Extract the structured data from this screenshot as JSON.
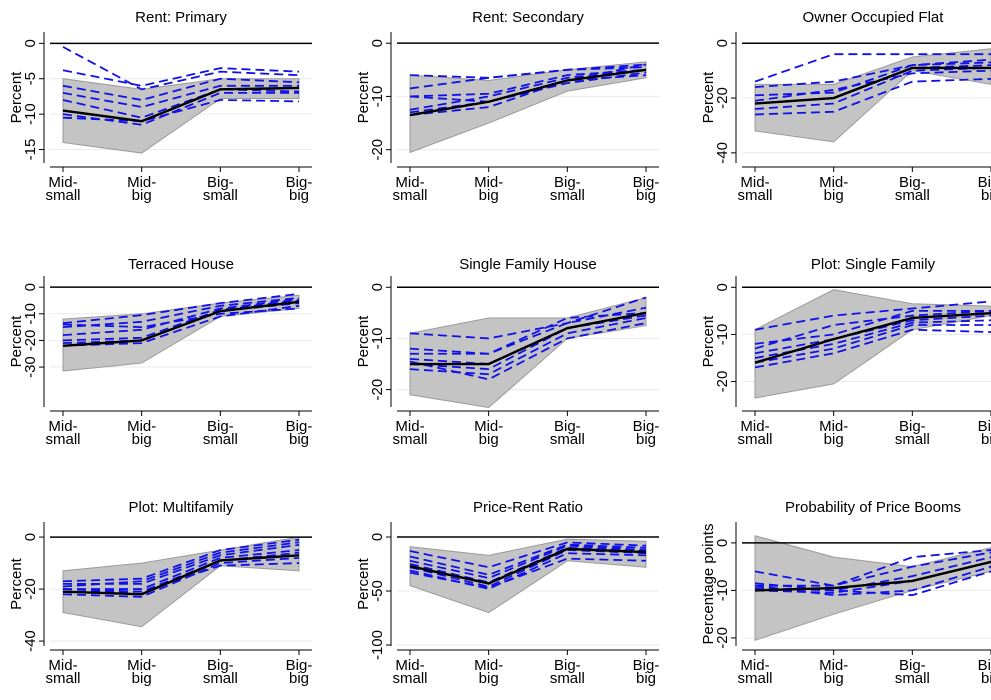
{
  "chart_data": [
    {
      "type": "line",
      "title": "Rent: Primary",
      "y_label": "Percent",
      "categories": [
        [
          "Mid-",
          "small"
        ],
        [
          "Mid-",
          "big"
        ],
        [
          "Big-",
          "small"
        ],
        [
          "Big-",
          "big"
        ]
      ],
      "ylim": [
        -16.9,
        1.6
      ],
      "yticks": [
        0,
        -5,
        -10,
        -15
      ],
      "grid": true,
      "hline": 0,
      "band": {
        "color": "#c4c4c4",
        "lower": [
          -14,
          -15.5,
          -7.8,
          -7.8
        ],
        "upper": [
          -5,
          -6.5,
          -5,
          -5
        ]
      },
      "series": [
        {
          "color": "#1010e8",
          "dashed": true,
          "values": [
            -0.5,
            -6.5,
            -4,
            -4.5
          ]
        },
        {
          "color": "#1010e8",
          "dashed": true,
          "values": [
            -3.8,
            -6,
            -3.5,
            -4
          ]
        },
        {
          "color": "#1010e8",
          "dashed": true,
          "values": [
            -6,
            -8,
            -5,
            -5.5
          ]
        },
        {
          "color": "#1010e8",
          "dashed": true,
          "values": [
            -7,
            -9,
            -6,
            -6
          ]
        },
        {
          "color": "#1010e8",
          "dashed": true,
          "values": [
            -8,
            -10.5,
            -6.5,
            -6.8
          ]
        },
        {
          "color": "#1010e8",
          "dashed": true,
          "values": [
            -10,
            -11.5,
            -7,
            -7
          ]
        },
        {
          "color": "#1010e8",
          "dashed": true,
          "values": [
            -10.5,
            -11,
            -8,
            -8.2
          ]
        },
        {
          "color": "#000000",
          "dashed": false,
          "values": [
            -9.5,
            -11,
            -6.5,
            -6.3
          ]
        }
      ]
    },
    {
      "type": "line",
      "title": "Rent: Secondary",
      "y_label": "Percent",
      "categories": [
        [
          "Mid-",
          "small"
        ],
        [
          "Mid-",
          "big"
        ],
        [
          "Big-",
          "small"
        ],
        [
          "Big-",
          "big"
        ]
      ],
      "ylim": [
        -22.5,
        2.1
      ],
      "yticks": [
        0,
        -10,
        -20
      ],
      "grid": true,
      "hline": 0,
      "band": {
        "color": "#c4c4c4",
        "lower": [
          -20.5,
          -15,
          -9,
          -6.5
        ],
        "upper": [
          -6,
          -7,
          -5,
          -3.5
        ]
      },
      "series": [
        {
          "color": "#1010e8",
          "dashed": true,
          "values": [
            -6,
            -6.5,
            -5,
            -4
          ]
        },
        {
          "color": "#1010e8",
          "dashed": true,
          "values": [
            -8.5,
            -6.5,
            -5,
            -4.5
          ]
        },
        {
          "color": "#1010e8",
          "dashed": true,
          "values": [
            -10,
            -9.5,
            -6,
            -5
          ]
        },
        {
          "color": "#1010e8",
          "dashed": true,
          "values": [
            -12.5,
            -10,
            -6.5,
            -5
          ]
        },
        {
          "color": "#1010e8",
          "dashed": true,
          "values": [
            -13,
            -11,
            -7.5,
            -5.5
          ]
        },
        {
          "color": "#1010e8",
          "dashed": true,
          "values": [
            -13.5,
            -12,
            -7,
            -6
          ]
        },
        {
          "color": "#1010e8",
          "dashed": true,
          "values": [
            -10,
            -11,
            -7,
            -4
          ]
        },
        {
          "color": "#000000",
          "dashed": false,
          "values": [
            -13.5,
            -11,
            -7,
            -5
          ]
        }
      ]
    },
    {
      "type": "line",
      "title": "Owner Occupied Flat",
      "y_label": "Percent",
      "categories": [
        [
          "Mid-",
          "small"
        ],
        [
          "Mid-",
          "big"
        ],
        [
          "Big-",
          "small"
        ],
        [
          "Big-",
          "big"
        ]
      ],
      "ylim": [
        -43.7,
        4.1
      ],
      "yticks": [
        0,
        -20,
        -40
      ],
      "grid": true,
      "hline": 0,
      "band": {
        "color": "#c4c4c4",
        "lower": [
          -32,
          -36,
          -10,
          -15
        ],
        "upper": [
          -15,
          -15,
          -5,
          -2
        ]
      },
      "series": [
        {
          "color": "#1010e8",
          "dashed": true,
          "values": [
            -14,
            -4,
            -4,
            -4
          ]
        },
        {
          "color": "#1010e8",
          "dashed": true,
          "values": [
            -16,
            -14,
            -8,
            -6
          ]
        },
        {
          "color": "#1010e8",
          "dashed": true,
          "values": [
            -19,
            -18,
            -8,
            -7
          ]
        },
        {
          "color": "#1010e8",
          "dashed": true,
          "values": [
            -22,
            -20,
            -9,
            -8
          ]
        },
        {
          "color": "#1010e8",
          "dashed": true,
          "values": [
            -24,
            -22,
            -10,
            -9
          ]
        },
        {
          "color": "#1010e8",
          "dashed": true,
          "values": [
            -26,
            -25,
            -14,
            -13
          ]
        },
        {
          "color": "#1010e8",
          "dashed": true,
          "values": [
            -21,
            -17,
            -11,
            -10
          ]
        },
        {
          "color": "#000000",
          "dashed": false,
          "values": [
            -22,
            -20,
            -9,
            -9
          ]
        }
      ]
    },
    {
      "type": "line",
      "title": "Terraced House",
      "y_label": "Percent",
      "categories": [
        [
          "Mid-",
          "small"
        ],
        [
          "Mid-",
          "big"
        ],
        [
          "Big-",
          "small"
        ],
        [
          "Big-",
          "big"
        ]
      ],
      "ylim": [
        -45,
        4.2
      ],
      "yticks": [
        0,
        -10,
        -20,
        -30
      ],
      "grid": true,
      "hline": 0,
      "band": {
        "color": "#c4c4c4",
        "lower": [
          -31.5,
          -28.5,
          -11,
          -8
        ],
        "upper": [
          -12,
          -10,
          -6,
          -3
        ]
      },
      "series": [
        {
          "color": "#1010e8",
          "dashed": true,
          "values": [
            -13.5,
            -10.5,
            -6,
            -2.5
          ]
        },
        {
          "color": "#1010e8",
          "dashed": true,
          "values": [
            -15,
            -13,
            -7,
            -4
          ]
        },
        {
          "color": "#1010e8",
          "dashed": true,
          "values": [
            -18,
            -16,
            -8,
            -4.5
          ]
        },
        {
          "color": "#1010e8",
          "dashed": true,
          "values": [
            -20,
            -19,
            -8.5,
            -5
          ]
        },
        {
          "color": "#1010e8",
          "dashed": true,
          "values": [
            -21,
            -20,
            -9,
            -6
          ]
        },
        {
          "color": "#1010e8",
          "dashed": true,
          "values": [
            -22,
            -21,
            -11,
            -7
          ]
        },
        {
          "color": "#1010e8",
          "dashed": true,
          "values": [
            -14,
            -15,
            -10,
            -8
          ]
        },
        {
          "color": "#000000",
          "dashed": false,
          "values": [
            -22,
            -20,
            -9,
            -5.5
          ]
        }
      ]
    },
    {
      "type": "line",
      "title": "Single Family House",
      "y_label": "Percent",
      "categories": [
        [
          "Mid-",
          "small"
        ],
        [
          "Mid-",
          "big"
        ],
        [
          "Big-",
          "small"
        ],
        [
          "Big-",
          "big"
        ]
      ],
      "ylim": [
        -23.4,
        2.2
      ],
      "yticks": [
        0,
        -10,
        -20
      ],
      "grid": true,
      "hline": 0,
      "band": {
        "color": "#c4c4c4",
        "lower": [
          -21,
          -23.5,
          -10,
          -7.5
        ],
        "upper": [
          -9,
          -6,
          -6,
          -2
        ]
      },
      "series": [
        {
          "color": "#1010e8",
          "dashed": true,
          "values": [
            -9,
            -10,
            -7,
            -2
          ]
        },
        {
          "color": "#1010e8",
          "dashed": true,
          "values": [
            -12,
            -13,
            -7,
            -4
          ]
        },
        {
          "color": "#1010e8",
          "dashed": true,
          "values": [
            -14,
            -15,
            -8,
            -5
          ]
        },
        {
          "color": "#1010e8",
          "dashed": true,
          "values": [
            -15,
            -16,
            -8,
            -5.5
          ]
        },
        {
          "color": "#1010e8",
          "dashed": true,
          "values": [
            -16,
            -17,
            -9,
            -6
          ]
        },
        {
          "color": "#1010e8",
          "dashed": true,
          "values": [
            -14.5,
            -18,
            -10,
            -7
          ]
        },
        {
          "color": "#1010e8",
          "dashed": true,
          "values": [
            -13,
            -13,
            -6,
            -5
          ]
        },
        {
          "color": "#000000",
          "dashed": false,
          "values": [
            -15,
            -15,
            -8,
            -5
          ]
        }
      ]
    },
    {
      "type": "line",
      "title": "Plot: Single Family",
      "y_label": "Percent",
      "categories": [
        [
          "Mid-",
          "small"
        ],
        [
          "Mid-",
          "big"
        ],
        [
          "Big-",
          "small"
        ],
        [
          "Big-",
          "big"
        ]
      ],
      "ylim": [
        -25.4,
        2.4
      ],
      "yticks": [
        0,
        -10,
        -20
      ],
      "grid": true,
      "hline": 0,
      "band": {
        "color": "#c4c4c4",
        "lower": [
          -23.5,
          -20.5,
          -9,
          -6
        ],
        "upper": [
          -9,
          -0.5,
          -3.5,
          -4
        ]
      },
      "series": [
        {
          "color": "#1010e8",
          "dashed": true,
          "values": [
            -9,
            -6,
            -4.5,
            -3
          ]
        },
        {
          "color": "#1010e8",
          "dashed": true,
          "values": [
            -12,
            -10,
            -5,
            -5
          ]
        },
        {
          "color": "#1010e8",
          "dashed": true,
          "values": [
            -14,
            -11,
            -7,
            -6
          ]
        },
        {
          "color": "#1010e8",
          "dashed": true,
          "values": [
            -15,
            -12,
            -7.5,
            -7
          ]
        },
        {
          "color": "#1010e8",
          "dashed": true,
          "values": [
            -16,
            -13,
            -8,
            -8
          ]
        },
        {
          "color": "#1010e8",
          "dashed": true,
          "values": [
            -17,
            -14,
            -9,
            -9.5
          ]
        },
        {
          "color": "#1010e8",
          "dashed": true,
          "values": [
            -13,
            -8,
            -6,
            -5
          ]
        },
        {
          "color": "#000000",
          "dashed": false,
          "values": [
            -16,
            -11,
            -6.5,
            -5.5
          ]
        }
      ]
    },
    {
      "type": "line",
      "title": "Plot: Multifamily",
      "y_label": "Percent",
      "categories": [
        [
          "Mid-",
          "small"
        ],
        [
          "Mid-",
          "big"
        ],
        [
          "Big-",
          "small"
        ],
        [
          "Big-",
          "big"
        ]
      ],
      "ylim": [
        -41.9,
        5.8
      ],
      "yticks": [
        0,
        -20,
        -40
      ],
      "grid": true,
      "hline": 0,
      "band": {
        "color": "#c4c4c4",
        "lower": [
          -29,
          -34.5,
          -11,
          -13
        ],
        "upper": [
          -13,
          -10,
          -5,
          0
        ]
      },
      "series": [
        {
          "color": "#1010e8",
          "dashed": true,
          "values": [
            -17,
            -16,
            -5,
            -1
          ]
        },
        {
          "color": "#1010e8",
          "dashed": true,
          "values": [
            -18,
            -18,
            -7,
            -3
          ]
        },
        {
          "color": "#1010e8",
          "dashed": true,
          "values": [
            -20,
            -20,
            -8,
            -5
          ]
        },
        {
          "color": "#1010e8",
          "dashed": true,
          "values": [
            -21,
            -21,
            -9,
            -6
          ]
        },
        {
          "color": "#1010e8",
          "dashed": true,
          "values": [
            -22,
            -23,
            -10,
            -8
          ]
        },
        {
          "color": "#1010e8",
          "dashed": true,
          "values": [
            -20,
            -21,
            -11,
            -10
          ]
        },
        {
          "color": "#1010e8",
          "dashed": true,
          "values": [
            -19,
            -17,
            -6,
            -2
          ]
        },
        {
          "color": "#000000",
          "dashed": false,
          "values": [
            -21,
            -22,
            -9,
            -7
          ]
        }
      ]
    },
    {
      "type": "line",
      "title": "Price-Rent Ratio",
      "y_label": "Percent",
      "categories": [
        [
          "Mid-",
          "small"
        ],
        [
          "Mid-",
          "big"
        ],
        [
          "Big-",
          "small"
        ],
        [
          "Big-",
          "big"
        ]
      ],
      "ylim": [
        -100.9,
        13.9
      ],
      "yticks": [
        0,
        -50,
        -100
      ],
      "grid": true,
      "hline": 0,
      "band": {
        "color": "#c4c4c4",
        "lower": [
          -45,
          -70,
          -22,
          -28
        ],
        "upper": [
          -9,
          -17,
          -2,
          -4
        ]
      },
      "series": [
        {
          "color": "#1010e8",
          "dashed": true,
          "values": [
            -13,
            -28,
            -5,
            -8
          ]
        },
        {
          "color": "#1010e8",
          "dashed": true,
          "values": [
            -18,
            -35,
            -7,
            -10
          ]
        },
        {
          "color": "#1010e8",
          "dashed": true,
          "values": [
            -25,
            -42,
            -10,
            -13
          ]
        },
        {
          "color": "#1010e8",
          "dashed": true,
          "values": [
            -28,
            -46,
            -12,
            -15
          ]
        },
        {
          "color": "#1010e8",
          "dashed": true,
          "values": [
            -31,
            -48,
            -15,
            -17
          ]
        },
        {
          "color": "#1010e8",
          "dashed": true,
          "values": [
            -33,
            -47,
            -20,
            -22
          ]
        },
        {
          "color": "#1010e8",
          "dashed": true,
          "values": [
            -22,
            -38,
            -8,
            -12
          ]
        },
        {
          "color": "#000000",
          "dashed": false,
          "values": [
            -27,
            -43,
            -11,
            -14
          ]
        }
      ]
    },
    {
      "type": "line",
      "title": "Probability of Price Booms",
      "y_label": "Percentage points",
      "categories": [
        [
          "Mid-",
          "small"
        ],
        [
          "Mid-",
          "big"
        ],
        [
          "Big-",
          "small"
        ],
        [
          "Big-",
          "big"
        ]
      ],
      "ylim": [
        -21.7,
        4.4
      ],
      "yticks": [
        0,
        -10,
        -20
      ],
      "grid": true,
      "hline": 0,
      "band": {
        "color": "#c4c4c4",
        "lower": [
          -20.5,
          -15,
          -10,
          -6
        ],
        "upper": [
          1.5,
          -3,
          -5,
          -1
        ]
      },
      "series": [
        {
          "color": "#1010e8",
          "dashed": true,
          "values": [
            -6,
            -9,
            -3,
            -1.5
          ]
        },
        {
          "color": "#1010e8",
          "dashed": true,
          "values": [
            -9,
            -9,
            -5,
            -2
          ]
        },
        {
          "color": "#1010e8",
          "dashed": true,
          "values": [
            -9.5,
            -10,
            -7,
            -3
          ]
        },
        {
          "color": "#1010e8",
          "dashed": true,
          "values": [
            -10,
            -10.5,
            -8,
            -4
          ]
        },
        {
          "color": "#1010e8",
          "dashed": true,
          "values": [
            -9,
            -11,
            -10,
            -5
          ]
        },
        {
          "color": "#1010e8",
          "dashed": true,
          "values": [
            -8.5,
            -10,
            -11,
            -6
          ]
        },
        {
          "color": "#000000",
          "dashed": false,
          "values": [
            -10,
            -9.5,
            -8,
            -4
          ]
        }
      ]
    }
  ]
}
